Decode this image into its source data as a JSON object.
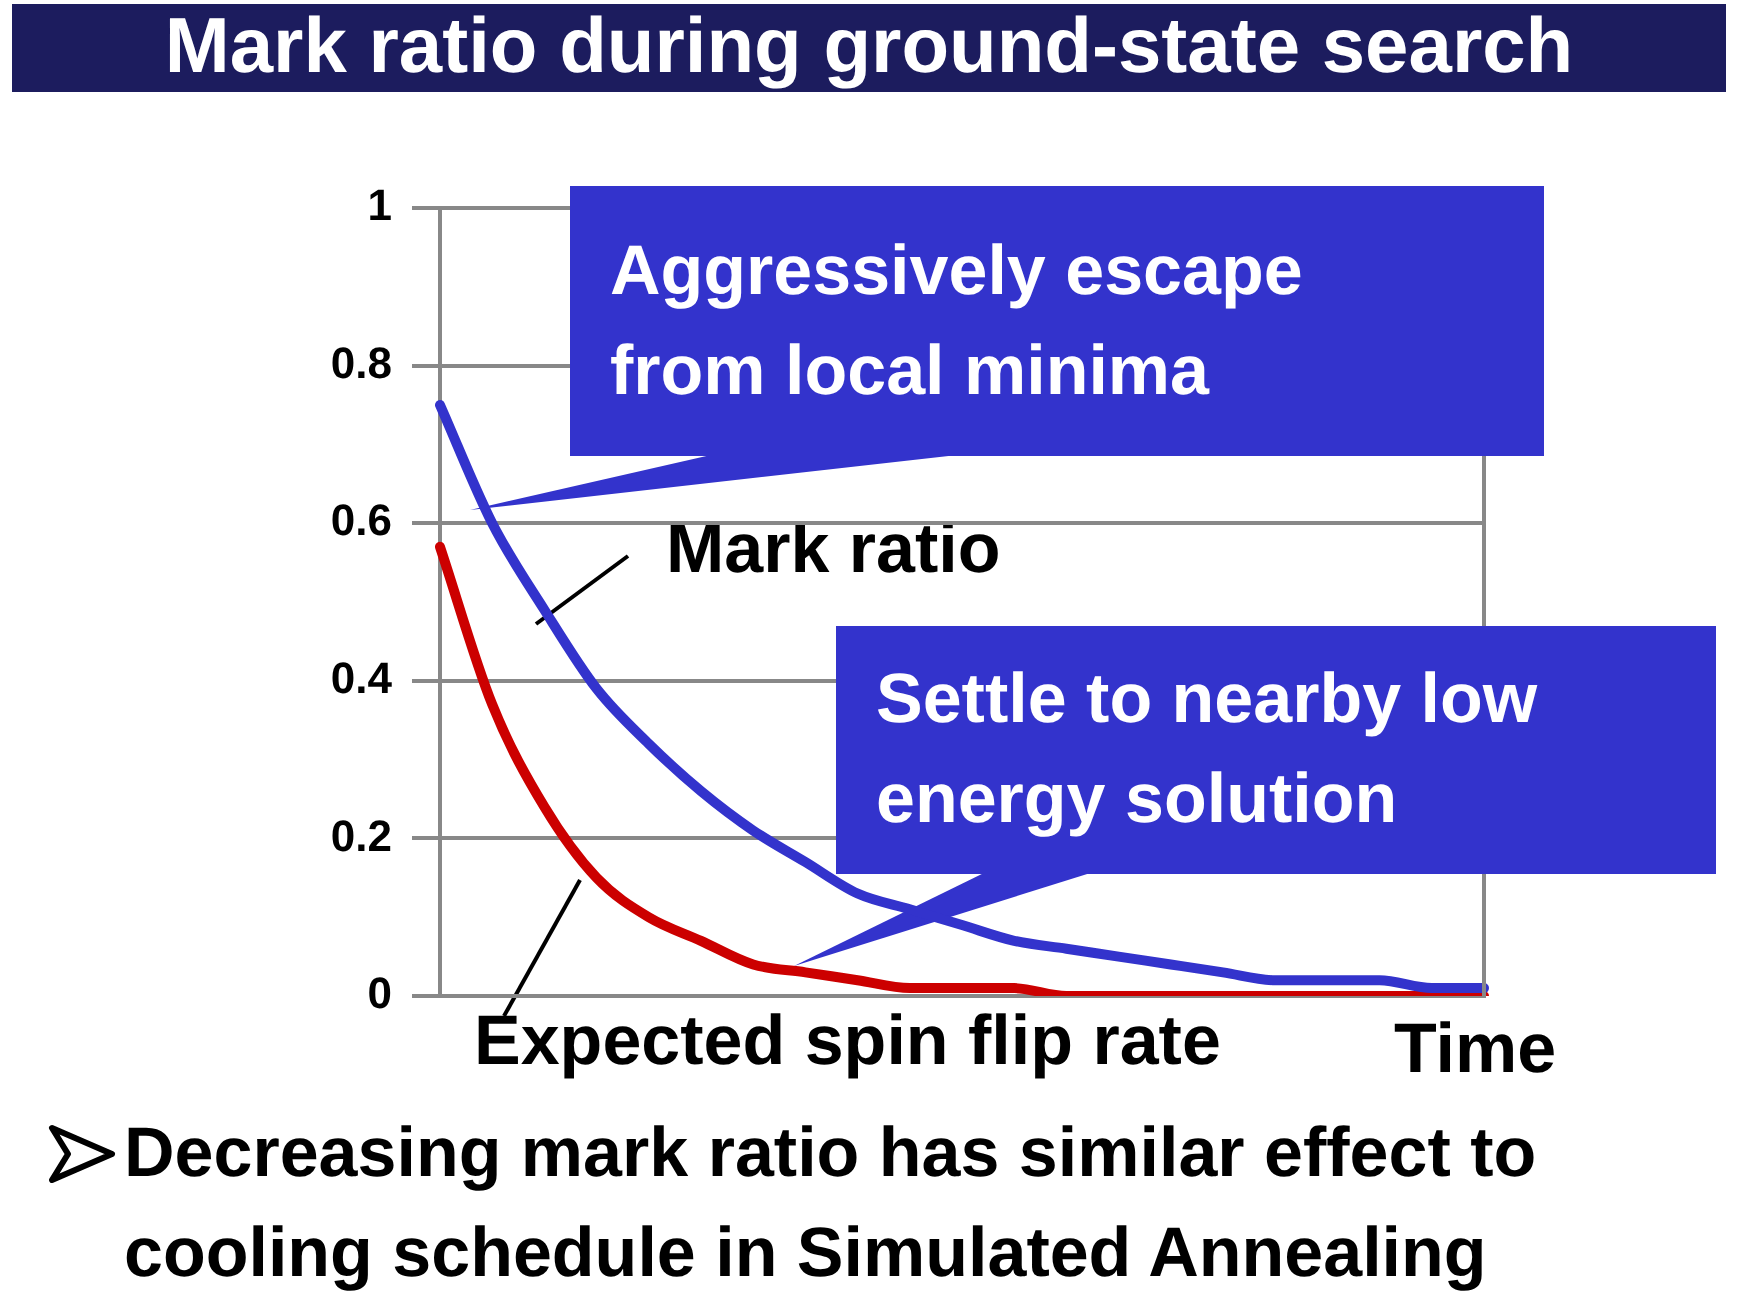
{
  "chart_data": {
    "type": "line",
    "title": "Mark ratio during ground-state search",
    "xlabel": "Time",
    "categories": [
      null,
      null,
      null,
      null,
      null,
      null,
      null,
      null,
      null,
      null,
      null,
      null,
      null,
      null,
      null,
      null,
      null,
      null,
      null,
      null,
      null
    ],
    "series": [
      {
        "name": "Mark ratio",
        "color": "#3333cc",
        "values": [
          0.75,
          0.6,
          0.49,
          0.39,
          0.32,
          0.26,
          0.21,
          0.17,
          0.13,
          0.11,
          0.09,
          0.07,
          0.06,
          0.05,
          0.04,
          0.03,
          0.02,
          0.02,
          0.02,
          0.01,
          0.01
        ]
      },
      {
        "name": "Expected spin flip rate",
        "color": "#cc0000",
        "values": [
          0.57,
          0.37,
          0.24,
          0.15,
          0.1,
          0.07,
          0.04,
          0.03,
          0.02,
          0.01,
          0.01,
          0.01,
          0,
          0,
          0,
          0,
          0,
          0,
          0,
          0,
          0
        ]
      }
    ],
    "ylim": [
      0,
      1
    ],
    "yticks": [
      0,
      0.2,
      0.4,
      0.6,
      0.8,
      1
    ],
    "grid": "y",
    "tick_labels": "y",
    "marker": "none",
    "line_style": "solid",
    "legend": false,
    "annotations": [
      "Aggressively escape from local minima",
      "Settle to nearby low energy solution",
      "Decreasing mark ratio has  similar effect to cooling schedule in Simulated Annealing"
    ]
  }
}
